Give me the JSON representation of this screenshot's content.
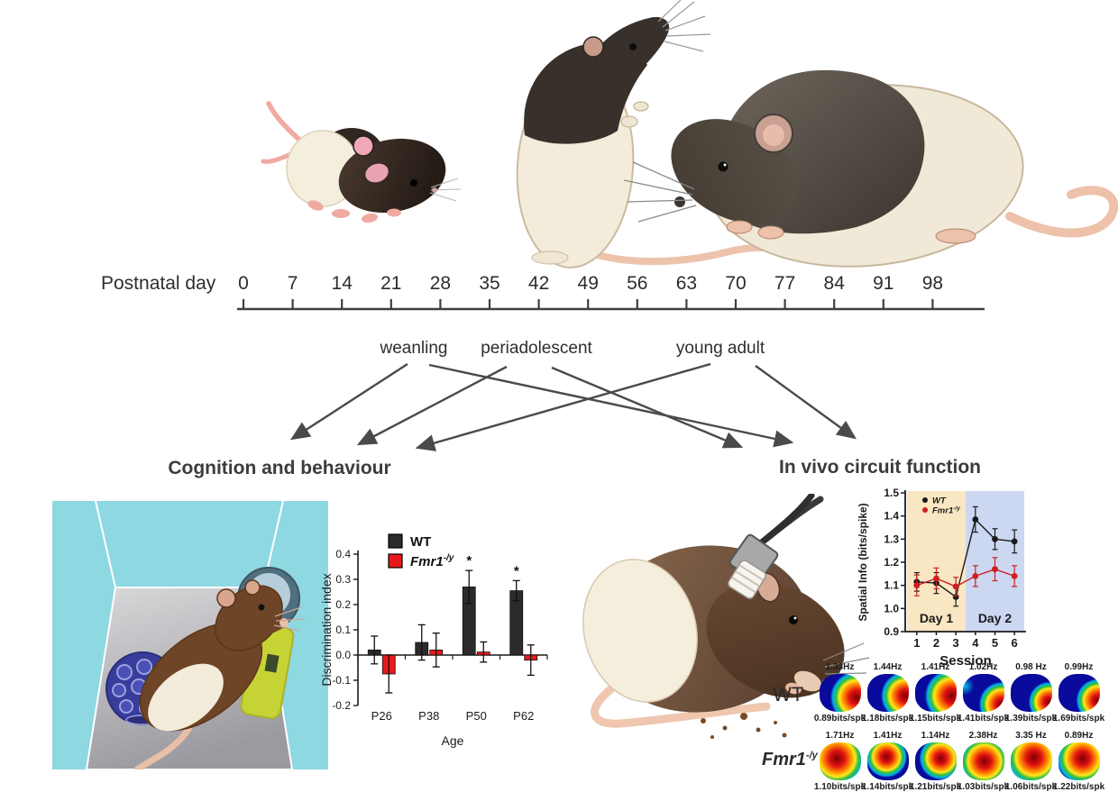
{
  "timeline": {
    "label": "Postnatal day",
    "ticks": [
      "0",
      "7",
      "14",
      "21",
      "28",
      "35",
      "42",
      "49",
      "56",
      "63",
      "70",
      "77",
      "84",
      "91",
      "98"
    ],
    "stages": [
      {
        "label": "weanling"
      },
      {
        "label": "periadolescent"
      },
      {
        "label": "young adult"
      }
    ]
  },
  "sections": {
    "left_heading": "Cognition and behaviour",
    "right_heading": "In vivo circuit function"
  },
  "chart_data": [
    {
      "id": "discrimination-bar-chart",
      "type": "bar",
      "xlabel": "Age",
      "ylabel": "Discrimination index",
      "categories": [
        "P26",
        "P38",
        "P50",
        "P62"
      ],
      "ylim": [
        -0.2,
        0.4
      ],
      "yticks": [
        0.4,
        0.3,
        0.2,
        0.1,
        0.0,
        -0.1,
        -0.2
      ],
      "grid": false,
      "legend_position": "top-left",
      "series": [
        {
          "label_base": "WT",
          "label_sup": "",
          "color": "#2b2b2b",
          "values": [
            0.02,
            0.05,
            0.27,
            0.255
          ],
          "errors": [
            0.055,
            0.07,
            0.065,
            0.04
          ]
        },
        {
          "label_base": "Fmr1",
          "label_sup": "-/y",
          "color": "#e8191c",
          "values": [
            -0.075,
            0.02,
            0.012,
            -0.02
          ],
          "errors": [
            0.075,
            0.067,
            0.04,
            0.06
          ]
        }
      ],
      "significance": [
        {
          "category": "P50",
          "marker": "*"
        },
        {
          "category": "P62",
          "marker": "*"
        }
      ]
    },
    {
      "id": "spatial-info-line-chart",
      "type": "line",
      "xlabel": "Session",
      "ylabel": "Spatial Info (bits/spike)",
      "x": [
        1,
        2,
        3,
        4,
        5,
        6
      ],
      "ylim": [
        0.9,
        1.5
      ],
      "yticks": [
        0.9,
        1.0,
        1.1,
        1.2,
        1.3,
        1.4,
        1.5
      ],
      "legend_position": "top-left",
      "bands": [
        {
          "label": "Day 1",
          "x_range": [
            0.5,
            3.5
          ],
          "color": "#f9e6c2"
        },
        {
          "label": "Day 2",
          "x_range": [
            3.5,
            6.5
          ],
          "color": "#ccd7f2"
        }
      ],
      "series": [
        {
          "label_base": "WT",
          "label_sup": "",
          "color": "#1a1a1a",
          "values": [
            1.115,
            1.11,
            1.05,
            1.385,
            1.3,
            1.29
          ],
          "errors": [
            0.04,
            0.045,
            0.04,
            0.055,
            0.045,
            0.05
          ]
        },
        {
          "label_base": "Fmr1",
          "label_sup": "-/y",
          "color": "#cc2020",
          "values": [
            1.1,
            1.13,
            1.095,
            1.14,
            1.17,
            1.14
          ],
          "errors": [
            0.045,
            0.045,
            0.04,
            0.045,
            0.05,
            0.045
          ]
        }
      ]
    }
  ],
  "heatmaps": {
    "rows": [
      {
        "label_base": "WT",
        "label_sup": "",
        "cells": [
          {
            "rate": "1.33Hz",
            "info": "0.89bits/spk",
            "hot": {
              "x": 89,
              "y": 62,
              "r": 60
            }
          },
          {
            "rate": "1.44Hz",
            "info": "1.18bits/spk",
            "hot": {
              "x": 92,
              "y": 58,
              "r": 56
            }
          },
          {
            "rate": "1.41Hz",
            "info": "1.15bits/spk",
            "hot": {
              "x": 88,
              "y": 58,
              "r": 63
            }
          },
          {
            "rate": "1.02Hz",
            "info": "1.41bits/spk",
            "hot": {
              "x": 93,
              "y": 80,
              "r": 46
            },
            "hot2": {
              "x": 5,
              "y": 32
            }
          },
          {
            "rate": "0.98 Hz",
            "info": "1.39bits/spk",
            "hot": {
              "x": 92,
              "y": 74,
              "r": 43
            }
          },
          {
            "rate": "0.99Hz",
            "info": "1.69bits/spk",
            "hot": {
              "x": 95,
              "y": 70,
              "r": 46
            }
          }
        ]
      },
      {
        "label_base": "Fmr1",
        "label_sup": "-/y",
        "cells": [
          {
            "rate": "1.71Hz",
            "info": "1.10bits/spk",
            "hot": {
              "x": 42,
              "y": 42,
              "r": 86
            }
          },
          {
            "rate": "1.41Hz",
            "info": "1.14bits/spk",
            "hot": {
              "x": 46,
              "y": 38,
              "r": 64
            }
          },
          {
            "rate": "1.14Hz",
            "info": "1.21bits/spk",
            "hot": {
              "x": 62,
              "y": 42,
              "r": 64
            }
          },
          {
            "rate": "2.38Hz",
            "info": "1.03bits/spk",
            "hot": {
              "x": 52,
              "y": 50,
              "r": 88
            }
          },
          {
            "rate": "3.35 Hz",
            "info": "1.06bits/spk",
            "hot": {
              "x": 56,
              "y": 40,
              "r": 85
            }
          },
          {
            "rate": "0.89Hz",
            "info": "1.22bits/spk",
            "hot": {
              "x": 58,
              "y": 42,
              "r": 80
            }
          }
        ]
      }
    ]
  }
}
